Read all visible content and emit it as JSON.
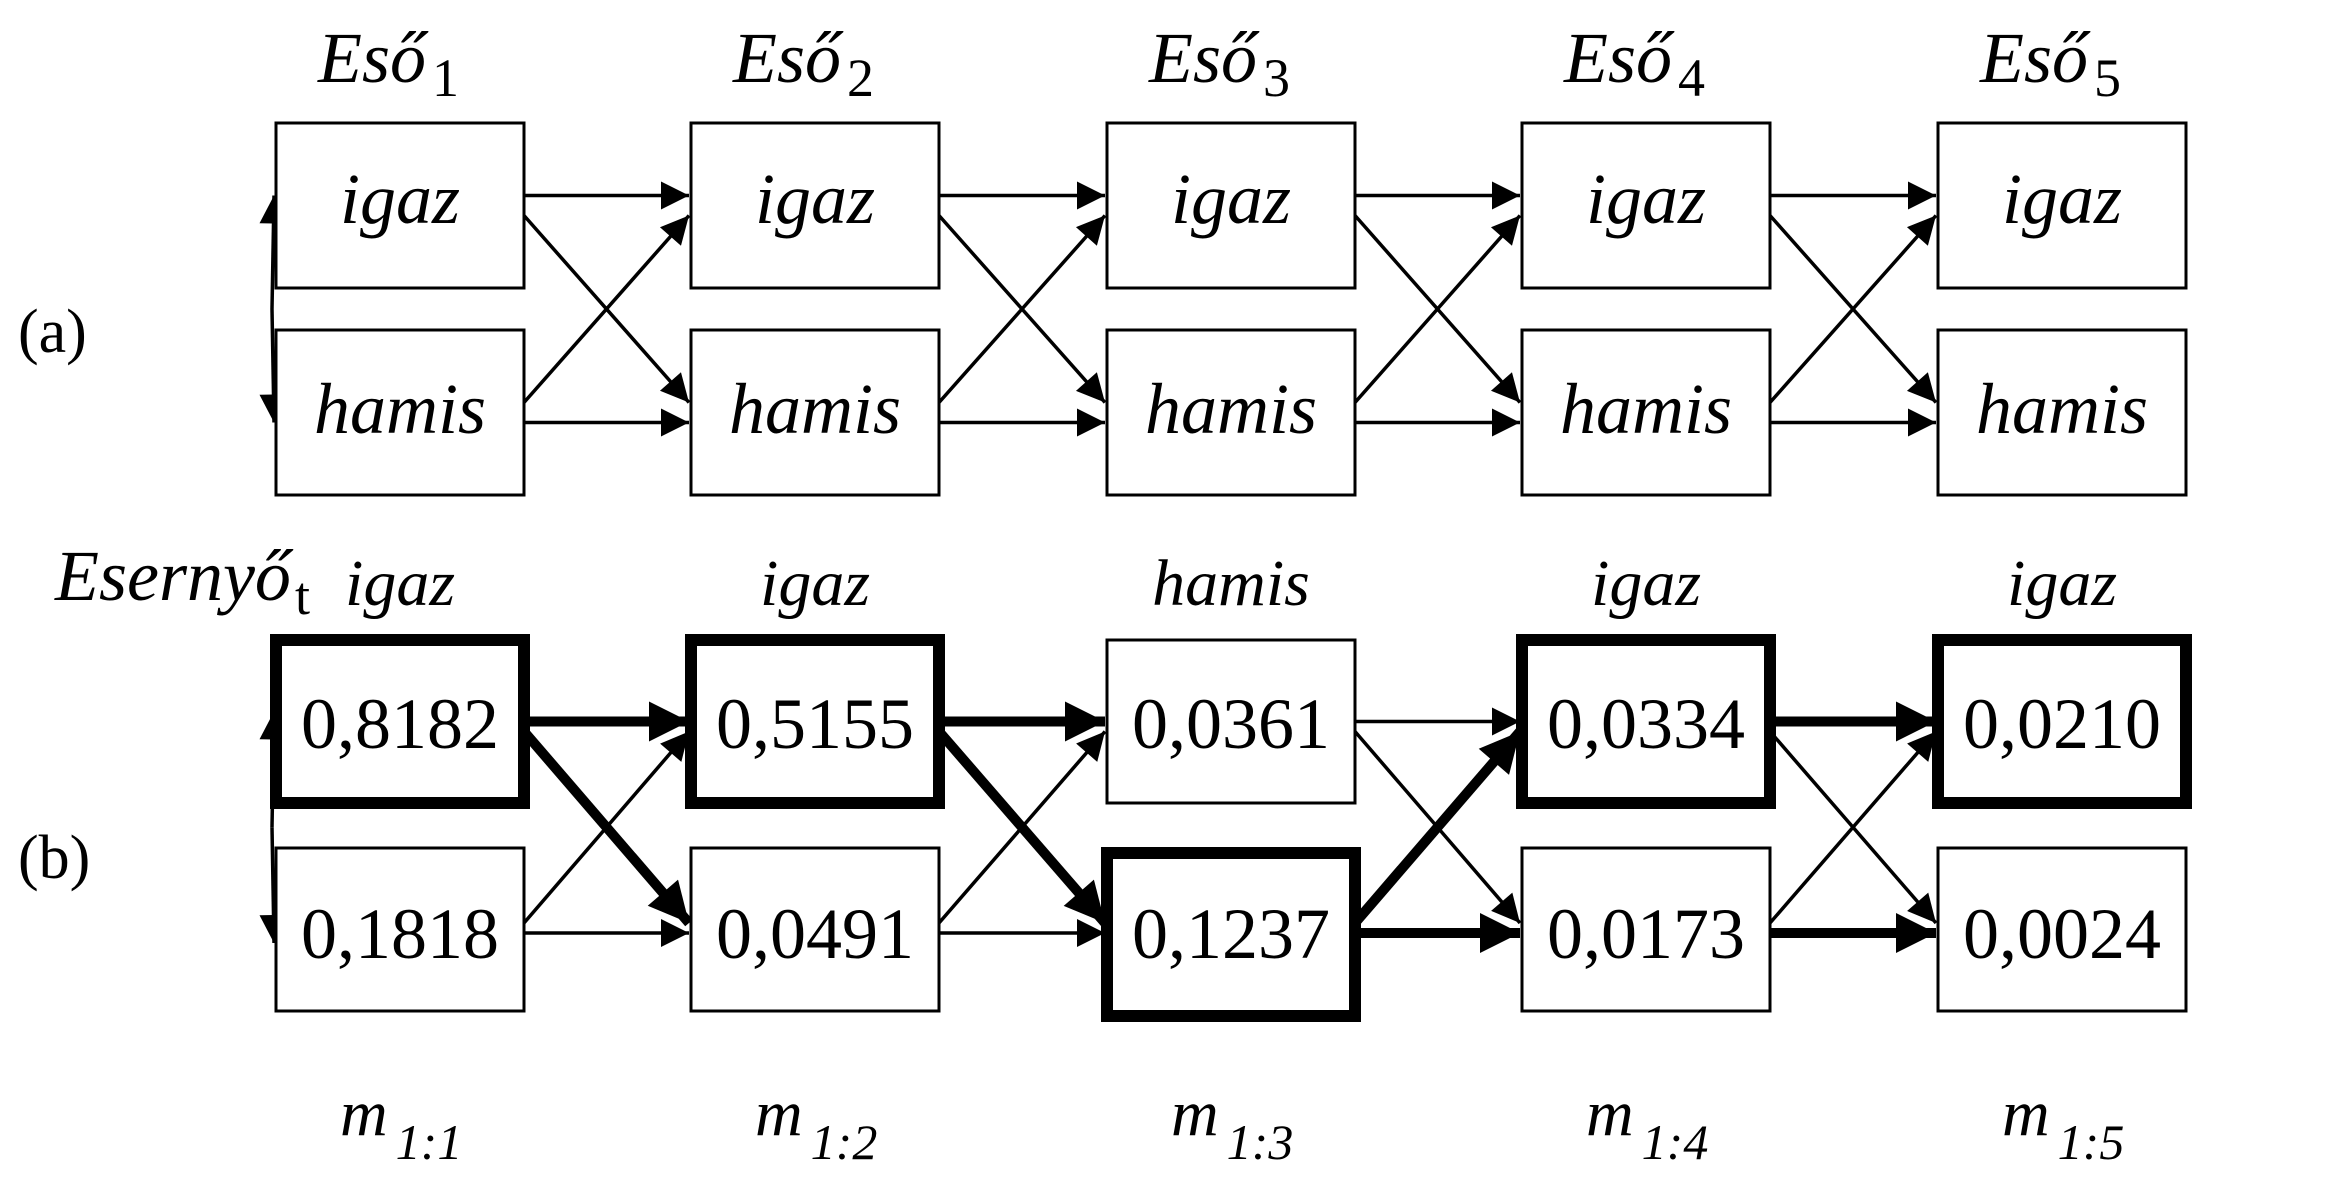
{
  "panels": {
    "a": "(a)",
    "b": "(b)"
  },
  "headers": [
    {
      "base": "Eső",
      "sub": "1"
    },
    {
      "base": "Eső",
      "sub": "2"
    },
    {
      "base": "Eső",
      "sub": "3"
    },
    {
      "base": "Eső",
      "sub": "4"
    },
    {
      "base": "Eső",
      "sub": "5"
    }
  ],
  "state_labels": {
    "true": "igaz",
    "false": "hamis"
  },
  "observation_row": {
    "label": {
      "base": "Esernyő",
      "sub": "t"
    },
    "values": [
      "igaz",
      "igaz",
      "hamis",
      "igaz",
      "igaz"
    ]
  },
  "messages": {
    "top": [
      "0,8182",
      "0,5155",
      "0,0361",
      "0,0334",
      "0,0210"
    ],
    "bottom": [
      "0,1818",
      "0,0491",
      "0,1237",
      "0,0173",
      "0,0024"
    ],
    "bold_top": [
      true,
      true,
      false,
      true,
      true
    ],
    "bold_bottom": [
      false,
      false,
      true,
      false,
      false
    ]
  },
  "bold_edges": [
    {
      "from_step": 1,
      "from": "top",
      "to": "top"
    },
    {
      "from_step": 1,
      "from": "top",
      "to": "bottom"
    },
    {
      "from_step": 2,
      "from": "top",
      "to": "top"
    },
    {
      "from_step": 2,
      "from": "top",
      "to": "bottom"
    },
    {
      "from_step": 3,
      "from": "bottom",
      "to": "top"
    },
    {
      "from_step": 3,
      "from": "bottom",
      "to": "bottom"
    },
    {
      "from_step": 4,
      "from": "top",
      "to": "top"
    },
    {
      "from_step": 4,
      "from": "bottom",
      "to": "bottom"
    }
  ],
  "m_labels": [
    {
      "base": "m",
      "sub": "1:1"
    },
    {
      "base": "m",
      "sub": "1:2"
    },
    {
      "base": "m",
      "sub": "1:3"
    },
    {
      "base": "m",
      "sub": "1:4"
    },
    {
      "base": "m",
      "sub": "1:5"
    }
  ]
}
